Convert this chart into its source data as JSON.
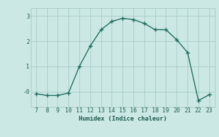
{
  "x": [
    7,
    8,
    9,
    10,
    11,
    12,
    13,
    14,
    15,
    16,
    17,
    18,
    19,
    20,
    21,
    22,
    23
  ],
  "y": [
    -0.08,
    -0.15,
    -0.15,
    -0.05,
    1.0,
    1.8,
    2.45,
    2.78,
    2.9,
    2.85,
    2.7,
    2.45,
    2.45,
    2.05,
    1.55,
    -0.35,
    -0.12
  ],
  "line_color": "#1a6b5e",
  "marker": "+",
  "bg_color": "#cce8e4",
  "grid_color": "#a8ceca",
  "xlabel": "Humidex (Indice chaleur)",
  "ylim": [
    -0.6,
    3.3
  ],
  "xlim": [
    6.5,
    23.5
  ],
  "yticks": [
    0,
    1,
    2,
    3
  ],
  "ytick_labels": [
    "-0",
    "1",
    "2",
    "3"
  ],
  "xticks": [
    7,
    8,
    9,
    10,
    11,
    12,
    13,
    14,
    15,
    16,
    17,
    18,
    19,
    20,
    21,
    22,
    23
  ],
  "font_color": "#1a5a50",
  "label_fontsize": 6.5,
  "tick_fontsize": 6.0
}
